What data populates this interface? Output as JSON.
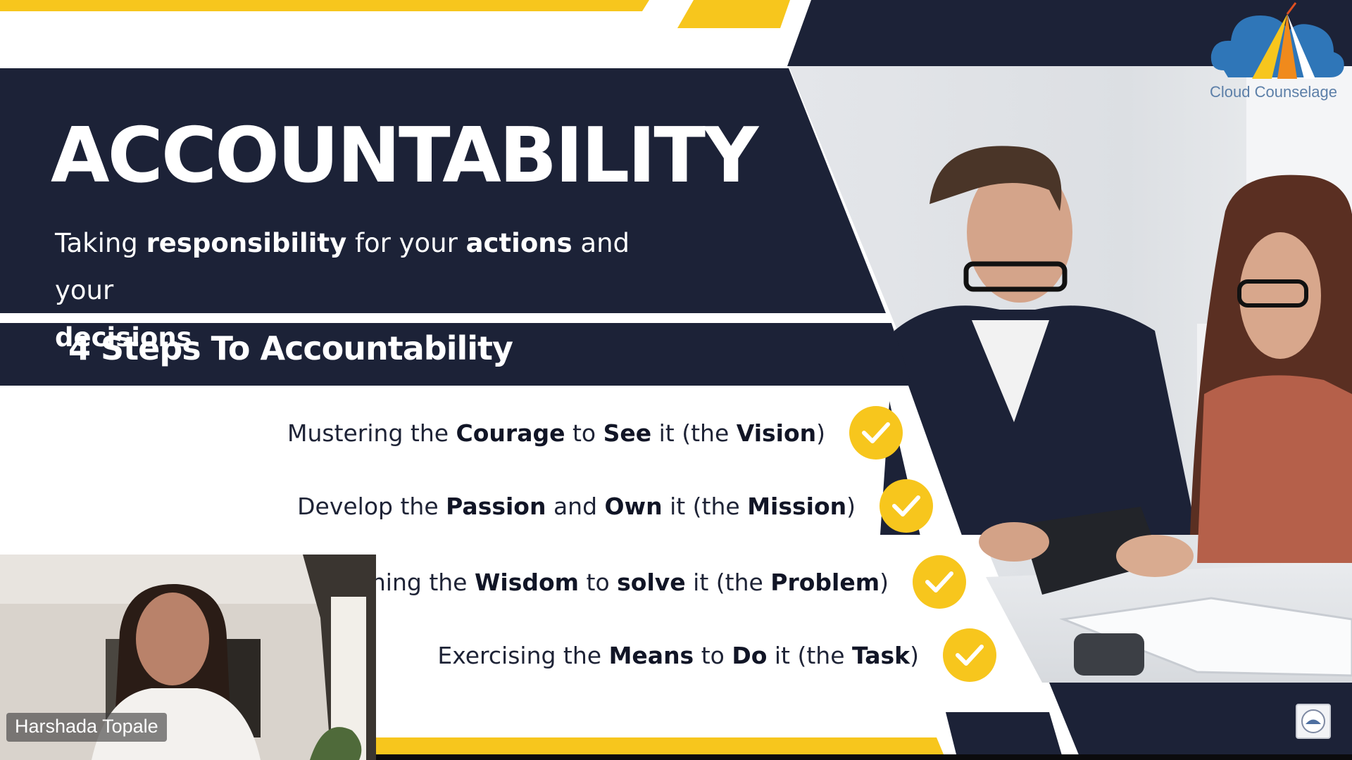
{
  "slide": {
    "title": "ACCOUNTABILITY",
    "subtitle": {
      "p1": "Taking ",
      "b1": "responsibility",
      "p2": " for your ",
      "b2": "actions",
      "p3": " and your ",
      "b3": "decisions"
    },
    "steps_heading": "4 Steps To Accountability",
    "steps": [
      {
        "t1": "Mustering the ",
        "b1": "Courage",
        "t2": " to ",
        "b2": "See",
        "t3": " it (the ",
        "b3": "Vision",
        "t4": ")"
      },
      {
        "t1": "Develop the ",
        "b1": "Passion",
        "t2": " and ",
        "b2": "Own",
        "t3": " it (the ",
        "b3": "Mission",
        "t4": ")"
      },
      {
        "t1": "ining the ",
        "b1": "Wisdom",
        "t2": " to ",
        "b2": "solve",
        "t3": " it (the ",
        "b3": "Problem",
        "t4": ")"
      },
      {
        "t1": "Exercising the ",
        "b1": "Means",
        "t2": " to ",
        "b2": "Do",
        "t3": " it (the ",
        "b3": "Task",
        "t4": ")"
      }
    ]
  },
  "logo": {
    "text": "Cloud Counselage"
  },
  "participant": {
    "name": "Harshada Topale"
  },
  "icons": {
    "check": "check-icon",
    "logo": "cloud-logo-icon",
    "badge": "meeting-badge-icon"
  },
  "colors": {
    "navy": "#1c2237",
    "yellow": "#f7c61d",
    "white": "#ffffff",
    "logo_blue": "#5c7fa8"
  }
}
